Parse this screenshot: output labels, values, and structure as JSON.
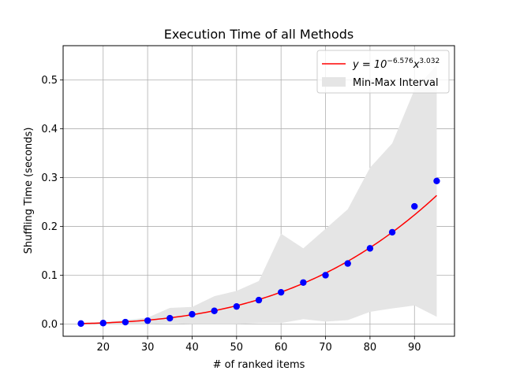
{
  "chart_data": {
    "type": "scatter",
    "title": "Execution Time of all Methods",
    "xlabel": "# of ranked items",
    "ylabel": "Shuffling Time (seconds)",
    "xlim": [
      11,
      99
    ],
    "ylim": [
      -0.025,
      0.57
    ],
    "xticks": [
      20,
      30,
      40,
      50,
      60,
      70,
      80,
      90
    ],
    "yticks": [
      0.0,
      0.1,
      0.2,
      0.3,
      0.4,
      0.5
    ],
    "ytick_labels": [
      "0.0",
      "0.1",
      "0.2",
      "0.3",
      "0.4",
      "0.5"
    ],
    "grid": true,
    "legend_position": "top-right",
    "x": [
      15,
      20,
      25,
      30,
      35,
      40,
      45,
      50,
      55,
      60,
      65,
      70,
      75,
      80,
      85,
      90,
      95
    ],
    "points": {
      "y": [
        0.001,
        0.002,
        0.004,
        0.007,
        0.012,
        0.02,
        0.027,
        0.036,
        0.049,
        0.065,
        0.085,
        0.1,
        0.124,
        0.155,
        0.188,
        0.241,
        0.293
      ],
      "color": "#0000ff"
    },
    "fit": {
      "label_base": "y = 10",
      "label_exp": "−6.576",
      "label_var": "x",
      "label_pow": "3.032",
      "log10_coef": -6.576,
      "power": 3.032,
      "color": "#ff0000"
    },
    "interval": {
      "name": "Min-Max Interval",
      "lower": [
        0.0,
        0.0,
        0.0,
        0.0,
        0.002,
        0.0,
        0.0,
        0.0,
        0.002,
        0.002,
        0.01,
        0.005,
        0.008,
        0.025,
        0.032,
        0.038,
        0.015
      ],
      "upper": [
        0.003,
        0.004,
        0.008,
        0.013,
        0.033,
        0.035,
        0.057,
        0.068,
        0.088,
        0.185,
        0.155,
        0.195,
        0.235,
        0.32,
        0.37,
        0.48,
        0.53
      ],
      "color": "#e5e5e5"
    }
  }
}
